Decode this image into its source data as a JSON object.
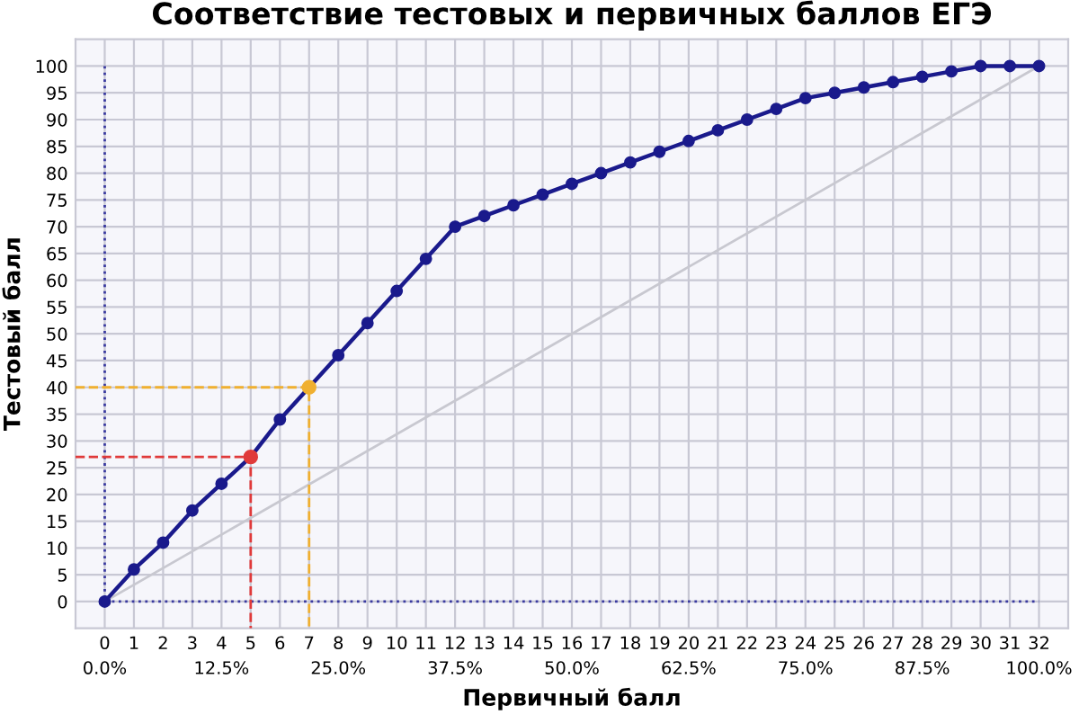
{
  "chart_data": {
    "type": "line",
    "title": "Соответствие тестовых и первичных баллов ЕГЭ",
    "xlabel": "Первичный балл",
    "ylabel": "Тестовый балл",
    "xlim": [
      -1,
      33
    ],
    "ylim": [
      -5,
      105
    ],
    "xticks": [
      0,
      1,
      2,
      3,
      4,
      5,
      6,
      7,
      8,
      9,
      10,
      11,
      12,
      13,
      14,
      15,
      16,
      17,
      18,
      19,
      20,
      21,
      22,
      23,
      24,
      25,
      26,
      27,
      28,
      29,
      30,
      31,
      32
    ],
    "x2lim": [
      -3.125,
      103.125
    ],
    "x2ticks": [
      {
        "value": 0,
        "label": "0.0%"
      },
      {
        "value": 12.5,
        "label": "12.5%"
      },
      {
        "value": 25,
        "label": "25.0%"
      },
      {
        "value": 37.5,
        "label": "37.5%"
      },
      {
        "value": 50,
        "label": "50.0%"
      },
      {
        "value": 62.5,
        "label": "62.5%"
      },
      {
        "value": 75,
        "label": "75.0%"
      },
      {
        "value": 87.5,
        "label": "87.5%"
      },
      {
        "value": 100,
        "label": "100.0%"
      }
    ],
    "yticks": [
      0,
      5,
      10,
      15,
      20,
      25,
      30,
      35,
      40,
      45,
      50,
      55,
      60,
      65,
      70,
      75,
      80,
      85,
      90,
      95,
      100
    ],
    "grid": true,
    "legend": false,
    "series": [
      {
        "color": "#c8c8d0",
        "marker": "none",
        "line_style": "solid",
        "x": [
          0,
          32
        ],
        "values": [
          0,
          100
        ]
      },
      {
        "color": "#3a3aa0",
        "marker": "none",
        "line_style": "dotted",
        "x": [
          0,
          0,
          32
        ],
        "values": [
          100,
          0,
          0
        ]
      },
      {
        "color": "#e03a3a",
        "marker": "none",
        "line_style": "dashed",
        "x": [
          -1,
          5,
          5
        ],
        "values": [
          27,
          27,
          -5
        ]
      },
      {
        "color": "#f0b030",
        "marker": "none",
        "line_style": "dashed",
        "x": [
          -1,
          7,
          7
        ],
        "values": [
          40,
          40,
          -5
        ]
      },
      {
        "color": "#1a1a8c",
        "marker": "circle",
        "line_style": "solid",
        "x": [
          0,
          1,
          2,
          3,
          4,
          5,
          6,
          7,
          8,
          9,
          10,
          11,
          12,
          13,
          14,
          15,
          16,
          17,
          18,
          19,
          20,
          21,
          22,
          23,
          24,
          25,
          26,
          27,
          28,
          29,
          30,
          31,
          32
        ],
        "values": [
          0,
          6,
          11,
          17,
          22,
          27,
          34,
          40,
          46,
          52,
          58,
          64,
          70,
          72,
          74,
          76,
          78,
          80,
          82,
          84,
          86,
          88,
          90,
          92,
          94,
          95,
          96,
          97,
          98,
          99,
          100,
          100,
          100
        ]
      },
      {
        "type": "scatter",
        "color": "#e03a3a",
        "marker": "circle",
        "x": [
          5
        ],
        "values": [
          27
        ]
      },
      {
        "type": "scatter",
        "color": "#f0b030",
        "marker": "circle",
        "x": [
          7
        ],
        "values": [
          40
        ]
      }
    ]
  }
}
